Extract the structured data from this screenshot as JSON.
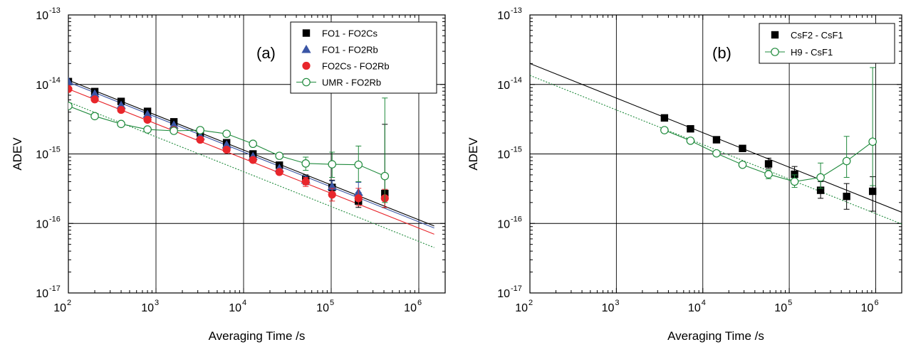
{
  "chart_data": [
    {
      "type": "scatter",
      "panel_label": "(a)",
      "xlabel": "Averaging Time /s",
      "ylabel": "ADEV",
      "x_scale": "log",
      "y_scale": "log",
      "xlim": [
        100,
        2000000
      ],
      "ylim": [
        1e-17,
        1e-13
      ],
      "grid": "decades",
      "legend_position": "top-right",
      "x_ticks": [
        {
          "value": 100,
          "base": "10",
          "exp": "2"
        },
        {
          "value": 1000,
          "base": "10",
          "exp": "3"
        },
        {
          "value": 10000,
          "base": "10",
          "exp": "4"
        },
        {
          "value": 100000,
          "base": "10",
          "exp": "5"
        },
        {
          "value": 1000000,
          "base": "10",
          "exp": "6"
        }
      ],
      "y_ticks": [
        {
          "value": 1e-17,
          "base": "10",
          "exp": "-17"
        },
        {
          "value": 1e-16,
          "base": "10",
          "exp": "-16"
        },
        {
          "value": 1e-15,
          "base": "10",
          "exp": "-15"
        },
        {
          "value": 1e-14,
          "base": "10",
          "exp": "-14"
        },
        {
          "value": 1e-13,
          "base": "10",
          "exp": "-13"
        }
      ],
      "series": [
        {
          "name": "FO1 - FO2Cs",
          "marker": "square",
          "color": "#000000",
          "connect": false,
          "x": [
            100,
            200,
            400,
            800,
            1600,
            3200,
            6400,
            12800,
            25600,
            51200,
            102400,
            204800,
            409600
          ],
          "y": [
            1.1e-14,
            7.9e-15,
            5.7e-15,
            4.1e-15,
            2.9e-15,
            2e-15,
            1.45e-15,
            1e-15,
            6.9e-16,
            4.3e-16,
            3.3e-16,
            2.1e-16,
            2.7e-16
          ],
          "err_lo": [
            0,
            0,
            0,
            0,
            0,
            0,
            0,
            0,
            0,
            7e-17,
            7e-17,
            4e-17,
            1e-16
          ],
          "err_hi": [
            0,
            0,
            0,
            0,
            0,
            0,
            0,
            0,
            0,
            7e-17,
            9e-17,
            7e-17,
            2.4e-15
          ]
        },
        {
          "name": "FO1 - FO2Rb",
          "marker": "triangle",
          "color": "#3a55a5",
          "connect": false,
          "x": [
            100,
            200,
            400,
            800,
            1600,
            3200,
            6400,
            12800,
            25600,
            51200,
            102400,
            204800
          ],
          "y": [
            1.1e-14,
            7.3e-15,
            5e-15,
            3.7e-15,
            2.6e-15,
            1.8e-15,
            1.35e-15,
            9.2e-16,
            6.2e-16,
            4.2e-16,
            3.4e-16,
            2.8e-16
          ],
          "err_lo": [
            0,
            0,
            0,
            0,
            0,
            0,
            0,
            0,
            0,
            6e-17,
            6e-17,
            6e-17
          ],
          "err_hi": [
            0,
            0,
            0,
            0,
            0,
            0,
            0,
            0,
            0,
            6e-17,
            7e-17,
            1.1e-16
          ]
        },
        {
          "name": "FO2Cs - FO2Rb",
          "marker": "circle",
          "color": "#e8262b",
          "connect": false,
          "x": [
            100,
            200,
            400,
            800,
            1600,
            3200,
            6400,
            12800,
            25600,
            51200,
            102400,
            204800,
            409600
          ],
          "y": [
            8.6e-15,
            6.1e-15,
            4.3e-15,
            3.1e-15,
            2.2e-15,
            1.6e-15,
            1.15e-15,
            8.2e-16,
            5.5e-16,
            4e-16,
            2.6e-16,
            2.3e-16,
            2.3e-16
          ],
          "err_lo": [
            0,
            0,
            0,
            0,
            0,
            0,
            0,
            0,
            0,
            6e-17,
            5e-17,
            5e-17,
            6e-17
          ],
          "err_hi": [
            0,
            0,
            0,
            0,
            0,
            0,
            0,
            0,
            0,
            6e-17,
            6e-17,
            9e-17,
            8e-17
          ]
        },
        {
          "name": "UMR - FO2Rb",
          "marker": "open-circle",
          "color": "#1f8a3c",
          "connect": true,
          "x": [
            100,
            200,
            400,
            800,
            1600,
            3200,
            6400,
            12800,
            25600,
            51200,
            102400,
            204800,
            409600
          ],
          "y": [
            4.9e-15,
            3.5e-15,
            2.7e-15,
            2.25e-15,
            2.15e-15,
            2.2e-15,
            1.95e-15,
            1.4e-15,
            9.4e-16,
            7.3e-16,
            7.1e-16,
            7e-16,
            4.8e-16
          ],
          "err_lo": [
            0,
            0,
            0,
            0,
            0,
            0,
            0,
            0,
            7e-17,
            1.5e-16,
            2.5e-16,
            3e-16,
            2.8e-16
          ],
          "err_hi": [
            0,
            0,
            0,
            0,
            0,
            0,
            0,
            0,
            9e-17,
            1.7e-16,
            3.5e-16,
            6e-16,
            5.9e-15
          ]
        }
      ],
      "fit_lines": [
        {
          "color": "#000000",
          "style": "solid",
          "x": [
            100,
            1500000
          ],
          "y": [
            1.15e-14,
            9.2e-17
          ]
        },
        {
          "color": "#3a55a5",
          "style": "solid",
          "x": [
            100,
            1500000
          ],
          "y": [
            1.08e-14,
            8.6e-17
          ]
        },
        {
          "color": "#e8262b",
          "style": "solid",
          "x": [
            100,
            1500000
          ],
          "y": [
            8.6e-15,
            7e-17
          ]
        },
        {
          "color": "#1f8a3c",
          "style": "dotted",
          "x": [
            100,
            1500000
          ],
          "y": [
            5.6e-15,
            4.5e-17
          ]
        }
      ]
    },
    {
      "type": "scatter",
      "panel_label": "(b)",
      "xlabel": "Averaging Time /s",
      "ylabel": "ADEV",
      "x_scale": "log",
      "y_scale": "log",
      "xlim": [
        100,
        2000000
      ],
      "ylim": [
        1e-17,
        1e-13
      ],
      "grid": "decades",
      "legend_position": "top-right",
      "x_ticks": [
        {
          "value": 100,
          "base": "10",
          "exp": "2"
        },
        {
          "value": 1000,
          "base": "10",
          "exp": "3"
        },
        {
          "value": 10000,
          "base": "10",
          "exp": "4"
        },
        {
          "value": 100000,
          "base": "10",
          "exp": "5"
        },
        {
          "value": 1000000,
          "base": "10",
          "exp": "6"
        }
      ],
      "y_ticks": [
        {
          "value": 1e-17,
          "base": "10",
          "exp": "-17"
        },
        {
          "value": 1e-16,
          "base": "10",
          "exp": "-16"
        },
        {
          "value": 1e-15,
          "base": "10",
          "exp": "-15"
        },
        {
          "value": 1e-14,
          "base": "10",
          "exp": "-14"
        },
        {
          "value": 1e-13,
          "base": "10",
          "exp": "-13"
        }
      ],
      "series": [
        {
          "name": "CsF2 - CsF1",
          "marker": "square",
          "color": "#000000",
          "connect": false,
          "x": [
            3600,
            7200,
            14400,
            28800,
            57600,
            115200,
            230400,
            460800,
            921600
          ],
          "y": [
            3.3e-15,
            2.3e-15,
            1.6e-15,
            1.2e-15,
            7.2e-16,
            5.1e-16,
            3e-16,
            2.45e-16,
            2.9e-16
          ],
          "err_lo": [
            0,
            0,
            0,
            1e-16,
            1e-16,
            1e-16,
            7e-17,
            8.5e-17,
            1.4e-16
          ],
          "err_hi": [
            0,
            0,
            0,
            1e-16,
            1.5e-16,
            1.5e-16,
            1e-16,
            1.3e-16,
            1.8e-16
          ]
        },
        {
          "name": "H9 - CsF1",
          "marker": "open-circle",
          "color": "#1f8a3c",
          "connect": true,
          "x": [
            3600,
            7200,
            14400,
            28800,
            57600,
            115200,
            230400,
            460800,
            921600
          ],
          "y": [
            2.2e-15,
            1.55e-15,
            1.02e-15,
            7e-16,
            5.1e-16,
            4e-16,
            4.6e-16,
            7.9e-16,
            1.5e-15
          ],
          "err_lo": [
            0,
            0,
            0,
            5e-17,
            7e-17,
            7e-17,
            1.4e-16,
            3.3e-16,
            1.15e-15
          ],
          "err_hi": [
            0,
            0,
            0,
            5e-17,
            8e-17,
            1e-16,
            2.8e-16,
            1e-15,
            1.6e-14
          ]
        }
      ],
      "fit_lines": [
        {
          "color": "#000000",
          "style": "solid",
          "x": [
            100,
            2000000
          ],
          "y": [
            2e-14,
            1.45e-16
          ]
        },
        {
          "color": "#1f8a3c",
          "style": "dotted",
          "x": [
            100,
            2000000
          ],
          "y": [
            1.35e-14,
            9.8e-17
          ]
        }
      ]
    }
  ]
}
